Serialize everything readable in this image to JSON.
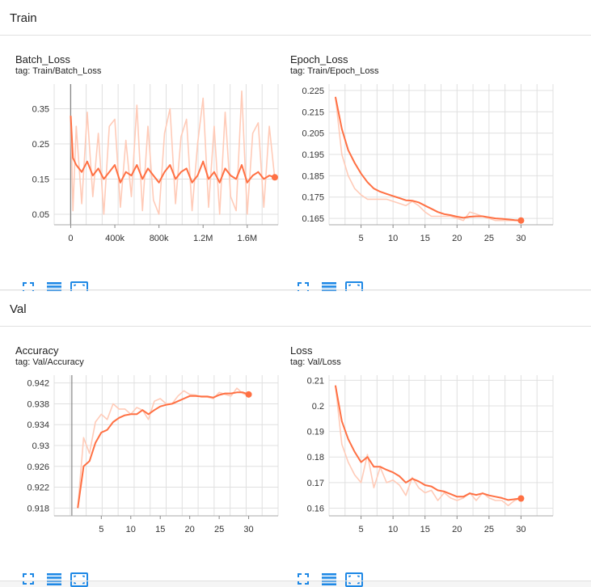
{
  "sections": [
    {
      "title": "Train"
    },
    {
      "title": "Val"
    }
  ],
  "cards": [
    {
      "title": "Batch_Loss",
      "tag": "tag: Train/Batch_Loss"
    },
    {
      "title": "Epoch_Loss",
      "tag": "tag: Train/Epoch_Loss"
    },
    {
      "title": "Accuracy",
      "tag": "tag: Val/Accuracy"
    },
    {
      "title": "Loss",
      "tag": "tag: Val/Loss"
    }
  ],
  "icons": [
    "fullscreen-icon",
    "data-table-icon",
    "fit-domain-icon"
  ],
  "colors": {
    "accent": "#ff7043",
    "raw": "#ffcbb8",
    "grid": "#e0e0e0",
    "icon": "#1e88e5"
  },
  "chart_data": [
    {
      "type": "line",
      "title": "Batch_Loss",
      "x_ticks": [
        "0",
        "400k",
        "800k",
        "1.2M",
        "1.6M"
      ],
      "y_ticks": [
        "0.35",
        "0.25",
        "0.15",
        "0.05"
      ],
      "xlim": [
        -150000,
        1880000
      ],
      "ylim": [
        0.02,
        0.42
      ],
      "series": [
        {
          "role": "smoothed",
          "x": [
            0,
            20000,
            50000,
            100000,
            150000,
            200000,
            250000,
            300000,
            350000,
            400000,
            450000,
            500000,
            550000,
            600000,
            650000,
            700000,
            750000,
            800000,
            850000,
            900000,
            950000,
            1000000,
            1050000,
            1100000,
            1150000,
            1200000,
            1250000,
            1300000,
            1350000,
            1400000,
            1450000,
            1500000,
            1550000,
            1600000,
            1650000,
            1700000,
            1750000,
            1800000,
            1850000
          ],
          "y": [
            0.33,
            0.21,
            0.19,
            0.17,
            0.2,
            0.16,
            0.18,
            0.15,
            0.17,
            0.19,
            0.14,
            0.17,
            0.16,
            0.19,
            0.15,
            0.18,
            0.16,
            0.14,
            0.17,
            0.19,
            0.15,
            0.17,
            0.18,
            0.14,
            0.16,
            0.2,
            0.15,
            0.17,
            0.14,
            0.18,
            0.16,
            0.15,
            0.19,
            0.14,
            0.16,
            0.17,
            0.15,
            0.16,
            0.155
          ]
        },
        {
          "role": "raw",
          "x": [
            0,
            20000,
            50000,
            100000,
            150000,
            200000,
            250000,
            300000,
            350000,
            400000,
            450000,
            500000,
            550000,
            600000,
            650000,
            700000,
            750000,
            800000,
            850000,
            900000,
            950000,
            1000000,
            1050000,
            1100000,
            1150000,
            1200000,
            1250000,
            1300000,
            1350000,
            1400000,
            1450000,
            1500000,
            1550000,
            1600000,
            1650000,
            1700000,
            1750000,
            1800000,
            1850000
          ],
          "y": [
            0.33,
            0.06,
            0.3,
            0.08,
            0.34,
            0.1,
            0.28,
            0.05,
            0.3,
            0.32,
            0.07,
            0.26,
            0.1,
            0.36,
            0.06,
            0.3,
            0.09,
            0.05,
            0.28,
            0.35,
            0.08,
            0.27,
            0.32,
            0.06,
            0.25,
            0.38,
            0.07,
            0.3,
            0.05,
            0.34,
            0.1,
            0.06,
            0.4,
            0.05,
            0.28,
            0.31,
            0.07,
            0.3,
            0.15
          ]
        }
      ]
    },
    {
      "type": "line",
      "title": "Epoch_Loss",
      "x_ticks": [
        "5",
        "10",
        "15",
        "20",
        "25",
        "30"
      ],
      "y_ticks": [
        "0.225",
        "0.215",
        "0.205",
        "0.195",
        "0.185",
        "0.175",
        "0.165"
      ],
      "xlim": [
        0,
        35
      ],
      "ylim": [
        0.162,
        0.228
      ],
      "series": [
        {
          "role": "smoothed",
          "x": [
            1,
            2,
            3,
            4,
            5,
            6,
            7,
            8,
            9,
            10,
            11,
            12,
            13,
            14,
            15,
            16,
            17,
            18,
            19,
            20,
            21,
            22,
            23,
            24,
            25,
            26,
            27,
            28,
            29,
            30
          ],
          "y": [
            0.222,
            0.207,
            0.197,
            0.191,
            0.186,
            0.182,
            0.179,
            0.1775,
            0.1765,
            0.1755,
            0.1745,
            0.1735,
            0.1733,
            0.1725,
            0.171,
            0.1695,
            0.168,
            0.167,
            0.1665,
            0.1658,
            0.1653,
            0.1658,
            0.166,
            0.166,
            0.1655,
            0.165,
            0.1648,
            0.1645,
            0.1642,
            0.164
          ]
        },
        {
          "role": "raw",
          "x": [
            1,
            2,
            3,
            4,
            5,
            6,
            7,
            8,
            9,
            10,
            11,
            12,
            13,
            14,
            15,
            16,
            17,
            18,
            19,
            20,
            21,
            22,
            23,
            24,
            25,
            26,
            27,
            28,
            29,
            30
          ],
          "y": [
            0.222,
            0.195,
            0.185,
            0.179,
            0.176,
            0.174,
            0.174,
            0.174,
            0.174,
            0.173,
            0.172,
            0.171,
            0.173,
            0.171,
            0.168,
            0.166,
            0.166,
            0.166,
            0.166,
            0.165,
            0.164,
            0.168,
            0.167,
            0.166,
            0.165,
            0.164,
            0.164,
            0.164,
            0.164,
            0.164
          ]
        }
      ]
    },
    {
      "type": "line",
      "title": "Accuracy",
      "x_ticks": [
        "5",
        "10",
        "15",
        "20",
        "25",
        "30"
      ],
      "y_ticks": [
        "0.942",
        "0.938",
        "0.934",
        "0.93",
        "0.926",
        "0.922",
        "0.918"
      ],
      "xlim": [
        -3,
        35
      ],
      "ylim": [
        0.9165,
        0.9435
      ],
      "series": [
        {
          "role": "smoothed",
          "x": [
            1,
            2,
            3,
            4,
            5,
            6,
            7,
            8,
            9,
            10,
            11,
            12,
            13,
            14,
            15,
            16,
            17,
            18,
            19,
            20,
            21,
            22,
            23,
            24,
            25,
            26,
            27,
            28,
            29,
            30
          ],
          "y": [
            0.918,
            0.926,
            0.927,
            0.9305,
            0.9325,
            0.933,
            0.9345,
            0.9353,
            0.9358,
            0.936,
            0.936,
            0.9368,
            0.936,
            0.9368,
            0.9375,
            0.9378,
            0.938,
            0.9385,
            0.939,
            0.9395,
            0.9395,
            0.9394,
            0.9394,
            0.9392,
            0.9397,
            0.94,
            0.94,
            0.9402,
            0.9402,
            0.9398
          ]
        },
        {
          "role": "raw",
          "x": [
            1,
            2,
            3,
            4,
            5,
            6,
            7,
            8,
            9,
            10,
            11,
            12,
            13,
            14,
            15,
            16,
            17,
            18,
            19,
            20,
            21,
            22,
            23,
            24,
            25,
            26,
            27,
            28,
            29,
            30
          ],
          "y": [
            0.918,
            0.9315,
            0.9285,
            0.9345,
            0.936,
            0.935,
            0.938,
            0.937,
            0.937,
            0.936,
            0.9373,
            0.9368,
            0.935,
            0.9385,
            0.939,
            0.938,
            0.938,
            0.9395,
            0.9405,
            0.9398,
            0.9397,
            0.9393,
            0.9393,
            0.939,
            0.9402,
            0.9398,
            0.9395,
            0.941,
            0.94,
            0.9395
          ]
        }
      ]
    },
    {
      "type": "line",
      "title": "Loss",
      "x_ticks": [
        "5",
        "10",
        "15",
        "20",
        "25",
        "30"
      ],
      "y_ticks": [
        "0.21",
        "0.2",
        "0.19",
        "0.18",
        "0.17",
        "0.16"
      ],
      "xlim": [
        0,
        35
      ],
      "ylim": [
        0.157,
        0.212
      ],
      "series": [
        {
          "role": "smoothed",
          "x": [
            1,
            2,
            3,
            4,
            5,
            6,
            7,
            8,
            9,
            10,
            11,
            12,
            13,
            14,
            15,
            16,
            17,
            18,
            19,
            20,
            21,
            22,
            23,
            24,
            25,
            26,
            27,
            28,
            29,
            30
          ],
          "y": [
            0.208,
            0.194,
            0.187,
            0.182,
            0.178,
            0.18,
            0.1762,
            0.1762,
            0.175,
            0.174,
            0.1725,
            0.17,
            0.1715,
            0.1705,
            0.169,
            0.1685,
            0.167,
            0.1665,
            0.1655,
            0.1645,
            0.1645,
            0.1658,
            0.1652,
            0.1658,
            0.165,
            0.1645,
            0.164,
            0.1632,
            0.1635,
            0.1638
          ]
        },
        {
          "role": "raw",
          "x": [
            1,
            2,
            3,
            4,
            5,
            6,
            7,
            8,
            9,
            10,
            11,
            12,
            13,
            14,
            15,
            16,
            17,
            18,
            19,
            20,
            21,
            22,
            23,
            24,
            25,
            26,
            27,
            28,
            29,
            30
          ],
          "y": [
            0.208,
            0.185,
            0.178,
            0.173,
            0.17,
            0.181,
            0.168,
            0.176,
            0.17,
            0.171,
            0.169,
            0.165,
            0.172,
            0.168,
            0.166,
            0.167,
            0.163,
            0.166,
            0.164,
            0.163,
            0.164,
            0.166,
            0.163,
            0.166,
            0.164,
            0.163,
            0.163,
            0.161,
            0.163,
            0.164
          ]
        }
      ]
    }
  ]
}
